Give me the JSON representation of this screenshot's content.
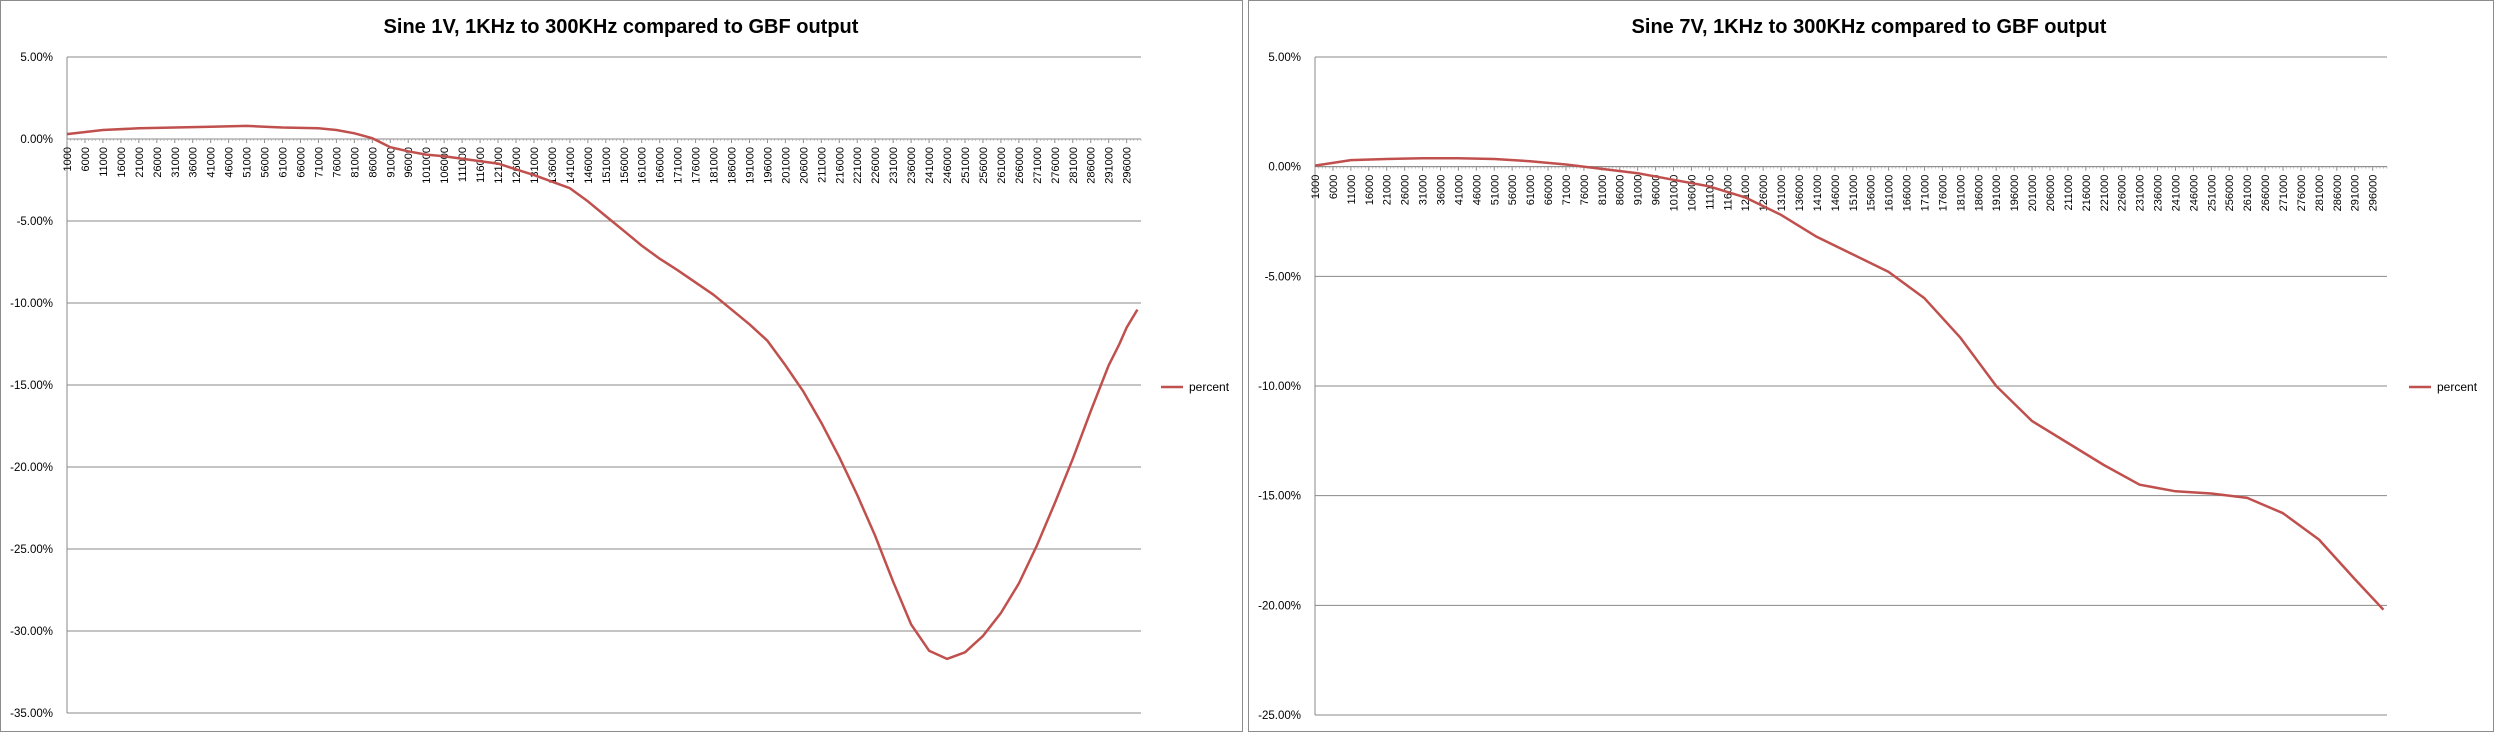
{
  "chart_data": [
    {
      "type": "line",
      "title": "Sine 1V, 1KHz to 300KHz compared to GBF output",
      "xlabel": "",
      "ylabel": "",
      "x_tick_labels": [
        "1000",
        "6000",
        "11000",
        "16000",
        "21000",
        "26000",
        "31000",
        "36000",
        "41000",
        "46000",
        "51000",
        "56000",
        "61000",
        "66000",
        "71000",
        "76000",
        "81000",
        "86000",
        "91000",
        "96000",
        "101000",
        "106000",
        "111000",
        "116000",
        "121000",
        "126000",
        "131000",
        "136000",
        "141000",
        "146000",
        "151000",
        "156000",
        "161000",
        "166000",
        "171000",
        "176000",
        "181000",
        "186000",
        "191000",
        "196000",
        "201000",
        "206000",
        "211000",
        "216000",
        "221000",
        "226000",
        "231000",
        "236000",
        "241000",
        "246000",
        "251000",
        "256000",
        "261000",
        "266000",
        "271000",
        "276000",
        "281000",
        "286000",
        "291000",
        "296000"
      ],
      "xlim": [
        1000,
        300000
      ],
      "ylim": [
        -35,
        5
      ],
      "y_tick_labels": [
        "5.00%",
        "0.00%",
        "-5.00%",
        "-10.00%",
        "-15.00%",
        "-20.00%",
        "-25.00%",
        "-30.00%",
        "-35.00%"
      ],
      "y_ticks": [
        5,
        0,
        -5,
        -10,
        -15,
        -20,
        -25,
        -30,
        -35
      ],
      "grid": true,
      "legend_position": "right",
      "series": [
        {
          "name": "percent",
          "color": "#c0504d",
          "x": [
            1000,
            11000,
            21000,
            31000,
            41000,
            51000,
            56000,
            61000,
            71000,
            76000,
            81000,
            86000,
            91000,
            96000,
            101000,
            106000,
            111000,
            121000,
            131000,
            141000,
            146000,
            151000,
            156000,
            161000,
            166000,
            171000,
            181000,
            191000,
            196000,
            201000,
            206000,
            211000,
            216000,
            221000,
            226000,
            231000,
            236000,
            241000,
            246000,
            251000,
            256000,
            261000,
            266000,
            271000,
            276000,
            281000,
            286000,
            291000,
            294000,
            296000,
            299000
          ],
          "values": [
            0.3,
            0.55,
            0.65,
            0.7,
            0.75,
            0.8,
            0.75,
            0.7,
            0.65,
            0.55,
            0.35,
            0.05,
            -0.5,
            -0.75,
            -0.95,
            -1.05,
            -1.2,
            -1.5,
            -2.2,
            -3.0,
            -3.8,
            -4.7,
            -5.6,
            -6.5,
            -7.3,
            -8.0,
            -9.5,
            -11.3,
            -12.3,
            -13.8,
            -15.4,
            -17.3,
            -19.4,
            -21.7,
            -24.2,
            -27.0,
            -29.6,
            -31.2,
            -31.7,
            -31.3,
            -30.3,
            -28.9,
            -27.1,
            -24.8,
            -22.2,
            -19.5,
            -16.6,
            -13.8,
            -12.5,
            -11.5,
            -10.4
          ]
        }
      ]
    },
    {
      "type": "line",
      "title": "Sine 7V, 1KHz to 300KHz compared to GBF output",
      "xlabel": "",
      "ylabel": "",
      "x_tick_labels": [
        "1000",
        "6000",
        "11000",
        "16000",
        "21000",
        "26000",
        "31000",
        "36000",
        "41000",
        "46000",
        "51000",
        "56000",
        "61000",
        "66000",
        "71000",
        "76000",
        "81000",
        "86000",
        "91000",
        "96000",
        "101000",
        "106000",
        "111000",
        "116000",
        "121000",
        "126000",
        "131000",
        "136000",
        "141000",
        "146000",
        "151000",
        "156000",
        "161000",
        "166000",
        "171000",
        "176000",
        "181000",
        "186000",
        "191000",
        "196000",
        "201000",
        "206000",
        "211000",
        "216000",
        "221000",
        "226000",
        "231000",
        "236000",
        "241000",
        "246000",
        "251000",
        "256000",
        "261000",
        "266000",
        "271000",
        "276000",
        "281000",
        "286000",
        "291000",
        "296000"
      ],
      "xlim": [
        1000,
        300000
      ],
      "ylim": [
        -25,
        5
      ],
      "y_tick_labels": [
        "5.00%",
        "0.00%",
        "-5.00%",
        "-10.00%",
        "-15.00%",
        "-20.00%",
        "-25.00%"
      ],
      "y_ticks": [
        5,
        0,
        -5,
        -10,
        -15,
        -20,
        -25
      ],
      "grid": true,
      "legend_position": "right",
      "series": [
        {
          "name": "percent",
          "color": "#c0504d",
          "x": [
            1000,
            11000,
            21000,
            31000,
            41000,
            51000,
            61000,
            71000,
            81000,
            91000,
            101000,
            111000,
            121000,
            131000,
            141000,
            151000,
            161000,
            171000,
            181000,
            191000,
            201000,
            211000,
            221000,
            231000,
            241000,
            251000,
            261000,
            271000,
            281000,
            291000,
            299000
          ],
          "values": [
            0.05,
            0.3,
            0.35,
            0.38,
            0.38,
            0.35,
            0.25,
            0.1,
            -0.1,
            -0.3,
            -0.6,
            -0.9,
            -1.4,
            -2.2,
            -3.2,
            -4.0,
            -4.8,
            -6.0,
            -7.8,
            -10.0,
            -11.6,
            -12.6,
            -13.6,
            -14.5,
            -14.8,
            -14.9,
            -15.1,
            -15.8,
            -17.0,
            -18.8,
            -20.2
          ]
        }
      ]
    }
  ]
}
